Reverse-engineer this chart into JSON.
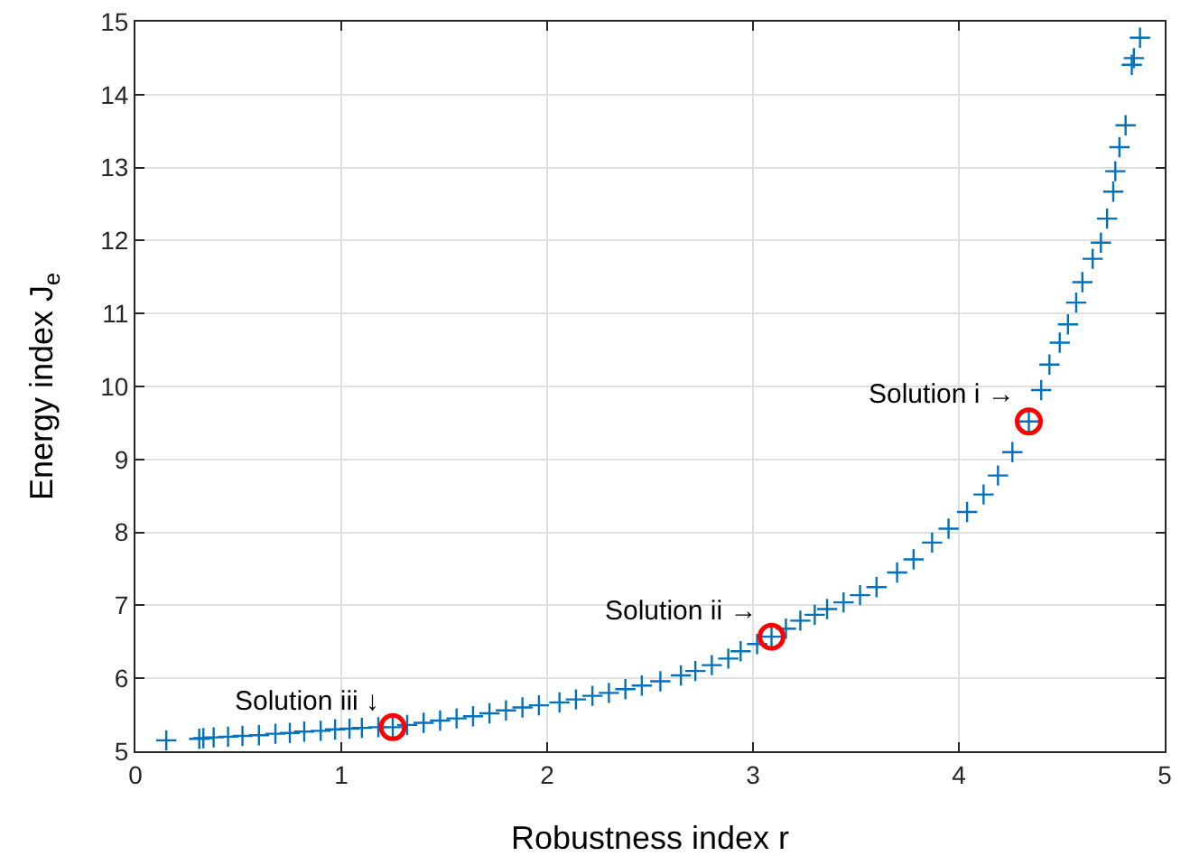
{
  "chart_data": {
    "type": "scatter",
    "xlabel": "Robustness index r",
    "ylabel": "Energy index J$_{e}$",
    "xlim": [
      0,
      5
    ],
    "ylim": [
      5,
      15
    ],
    "xticks": [
      0,
      1,
      2,
      3,
      4,
      5
    ],
    "yticks": [
      5,
      6,
      7,
      8,
      9,
      10,
      11,
      12,
      13,
      14,
      15
    ],
    "grid": true,
    "series": [
      {
        "color": "#0072bd",
        "marker": "cross",
        "x": [
          0.15,
          0.31,
          0.33,
          0.38,
          0.45,
          0.52,
          0.6,
          0.68,
          0.75,
          0.82,
          0.9,
          0.97,
          1.04,
          1.1,
          1.18,
          1.25,
          1.32,
          1.4,
          1.48,
          1.56,
          1.64,
          1.72,
          1.8,
          1.88,
          1.96,
          2.06,
          2.14,
          2.22,
          2.3,
          2.38,
          2.46,
          2.55,
          2.65,
          2.72,
          2.8,
          2.88,
          2.94,
          3.02,
          3.09,
          3.16,
          3.23,
          3.3,
          3.36,
          3.44,
          3.52,
          3.6,
          3.7,
          3.78,
          3.87,
          3.95,
          4.04,
          4.12,
          4.19,
          4.26,
          4.34,
          4.4,
          4.44,
          4.49,
          4.53,
          4.57,
          4.6,
          4.65,
          4.69,
          4.72,
          4.75,
          4.76,
          4.78,
          4.81,
          4.84,
          4.85,
          4.88
        ],
        "values": [
          5.15,
          5.17,
          5.18,
          5.19,
          5.2,
          5.21,
          5.22,
          5.24,
          5.25,
          5.27,
          5.28,
          5.3,
          5.31,
          5.32,
          5.33,
          5.33,
          5.36,
          5.39,
          5.42,
          5.45,
          5.48,
          5.52,
          5.56,
          5.6,
          5.63,
          5.67,
          5.71,
          5.76,
          5.8,
          5.85,
          5.9,
          5.96,
          6.04,
          6.1,
          6.18,
          6.27,
          6.37,
          6.47,
          6.57,
          6.68,
          6.79,
          6.87,
          6.95,
          7.04,
          7.14,
          7.25,
          7.45,
          7.63,
          7.86,
          8.05,
          8.28,
          8.52,
          8.78,
          9.1,
          9.52,
          9.95,
          10.3,
          10.6,
          10.85,
          11.15,
          11.43,
          11.75,
          11.97,
          12.3,
          12.67,
          12.95,
          13.28,
          13.58,
          14.41,
          14.5,
          14.78
        ]
      },
      {
        "color": "#ff0000",
        "marker": "circle",
        "x": [
          4.34,
          3.09,
          1.25
        ],
        "values": [
          9.52,
          6.57,
          5.33
        ]
      }
    ],
    "annotations": [
      {
        "text": "Solution i →",
        "x": 4.34,
        "y": 9.52
      },
      {
        "text": "Solution ii →",
        "x": 3.09,
        "y": 6.57
      },
      {
        "text": "Solution iii ↓",
        "x": 1.25,
        "y": 5.33
      }
    ]
  }
}
